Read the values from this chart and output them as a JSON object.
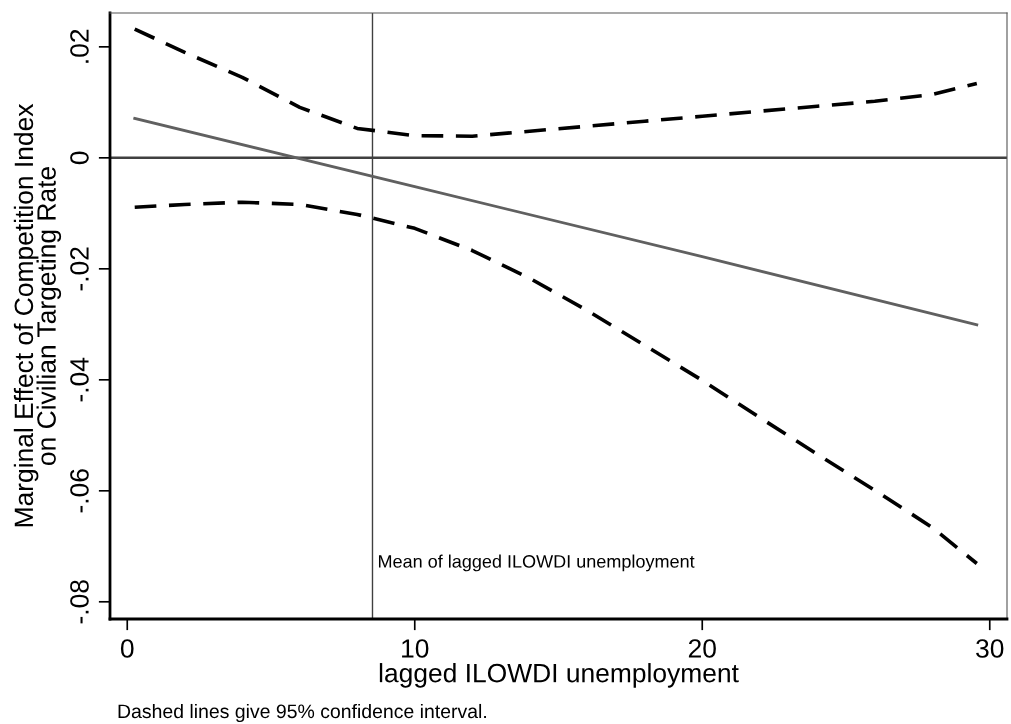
{
  "chart_data": {
    "type": "line",
    "xlabel": "lagged ILOWDI unemployment",
    "ylabel": "Marginal Effect of Competition Index\non Civilian Targeting Rate",
    "series": [
      {
        "color": "#000000",
        "line_style": "dashed",
        "x": [
          0.26,
          2,
          4,
          6,
          8,
          10,
          12,
          14,
          16,
          18,
          20,
          22,
          24,
          26,
          28,
          29.55
        ],
        "values": [
          0.0232,
          0.019,
          0.0145,
          0.0091,
          0.0053,
          0.004,
          0.0039,
          0.0048,
          0.0057,
          0.0066,
          0.0075,
          0.0084,
          0.0093,
          0.0102,
          0.0114,
          0.0134
        ]
      },
      {
        "color": "#606060",
        "line_style": "solid",
        "x": [
          0.26,
          10,
          20,
          29.55
        ],
        "values": [
          0.0071,
          -0.0052,
          -0.0178,
          -0.0301
        ]
      },
      {
        "color": "#000000",
        "line_style": "dashed",
        "x": [
          0.26,
          2,
          4,
          6,
          8,
          10,
          12,
          14,
          16,
          18,
          20,
          22,
          24,
          26,
          28,
          29.55
        ],
        "values": [
          -0.0089,
          -0.0084,
          -0.008,
          -0.0084,
          -0.0102,
          -0.0127,
          -0.0167,
          -0.0217,
          -0.0275,
          -0.0338,
          -0.0401,
          -0.0468,
          -0.0534,
          -0.0599,
          -0.0666,
          -0.0731
        ]
      }
    ],
    "xlim": [
      -0.6,
      30.6
    ],
    "xticks": [
      0,
      10,
      20,
      30
    ],
    "ylim": [
      -0.0831,
      0.0261
    ],
    "yticks": [
      {
        "value": 0.02,
        "label": ".02"
      },
      {
        "value": 0,
        "label": "0"
      },
      {
        "value": -0.02,
        "label": "-.02"
      },
      {
        "value": -0.04,
        "label": "-.04"
      },
      {
        "value": -0.06,
        "label": "-.06"
      },
      {
        "value": -0.08,
        "label": "-.08"
      }
    ],
    "ref_lines": [
      {
        "axis": "y",
        "value": 0,
        "color": "#404040"
      },
      {
        "axis": "x",
        "value": 8.53,
        "label": "Mean of lagged ILOWDI unemployment",
        "color": "#404040"
      }
    ],
    "grid": false,
    "legend": false,
    "annotations": [
      "Dashed lines give 95% confidence interval."
    ]
  }
}
